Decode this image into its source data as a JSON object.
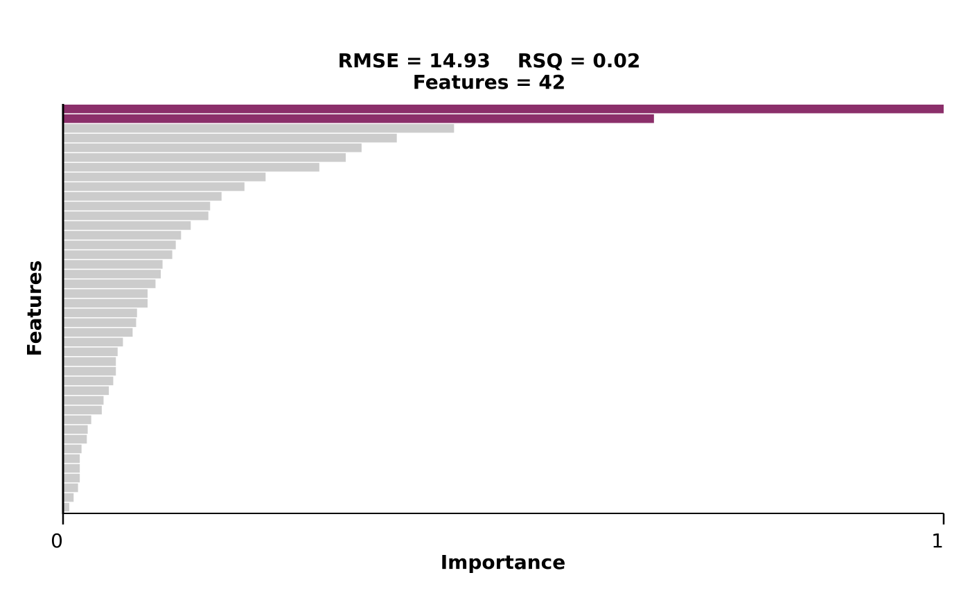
{
  "chart_data": {
    "type": "bar",
    "orientation": "horizontal",
    "title_line1": "RMSE = 14.93    RSQ = 0.02",
    "title_line2": "Features = 42",
    "xlabel": "Importance",
    "ylabel": "Features",
    "xlim": [
      0,
      1
    ],
    "x_ticks": [
      "0",
      "1"
    ],
    "grid": false,
    "legend": "none",
    "highlight_color": "#8b2f6a",
    "default_color": "#cccccc",
    "highlight_count": 2,
    "values": [
      1.0,
      0.671,
      0.444,
      0.379,
      0.339,
      0.321,
      0.291,
      0.23,
      0.206,
      0.18,
      0.167,
      0.165,
      0.145,
      0.134,
      0.128,
      0.124,
      0.113,
      0.111,
      0.105,
      0.096,
      0.096,
      0.084,
      0.083,
      0.079,
      0.068,
      0.062,
      0.06,
      0.06,
      0.057,
      0.052,
      0.046,
      0.044,
      0.032,
      0.028,
      0.027,
      0.021,
      0.019,
      0.019,
      0.019,
      0.017,
      0.012,
      0.007
    ]
  }
}
